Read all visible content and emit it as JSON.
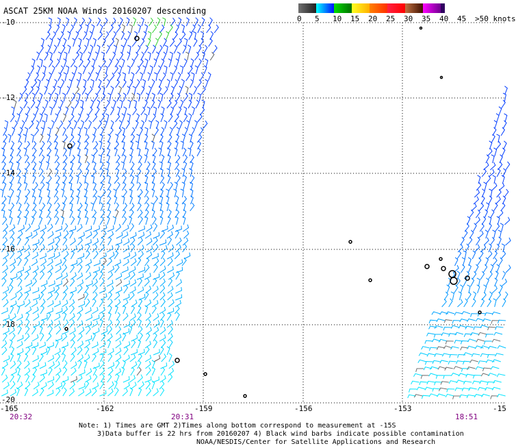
{
  "title": "ASCAT 25KM NOAA Winds 20160207 descending",
  "legend": {
    "ticks": [
      "0",
      "5",
      "10",
      "15",
      "20",
      "25",
      "30",
      "35",
      "40",
      "45",
      ">50 knots"
    ],
    "bands": [
      {
        "from": "#707070",
        "to": "#202020"
      },
      {
        "from": "#00ffff",
        "to": "#0010ff"
      },
      {
        "from": "#00dd00",
        "to": "#007000"
      },
      {
        "from": "#ffff20",
        "to": "#ffb000"
      },
      {
        "from": "#ff8000",
        "to": "#ff3000"
      },
      {
        "from": "#ff2040",
        "to": "#ff0000"
      },
      {
        "from": "#c07040",
        "to": "#401000"
      },
      {
        "from": "#ff00ff",
        "to": "#700090"
      }
    ],
    "end_color": "#300060"
  },
  "axes": {
    "lon_labels": [
      "-165",
      "-162",
      "-159",
      "-156",
      "-153",
      "-15"
    ],
    "lat_labels": [
      "-10",
      "-12",
      "-14",
      "-16",
      "-18",
      "-20"
    ]
  },
  "times": [
    "20:32",
    "20:31",
    "18:51"
  ],
  "notes": [
    "Note: 1) Times are GMT 2)Times along bottom correspond to measurement at -15S",
    "3)Data buffer is 22 hrs from 20160207 4) Black wind barbs indicate possible contamination",
    "NOAA/NESDIS/Center for Satellite Applications and Research"
  ]
}
